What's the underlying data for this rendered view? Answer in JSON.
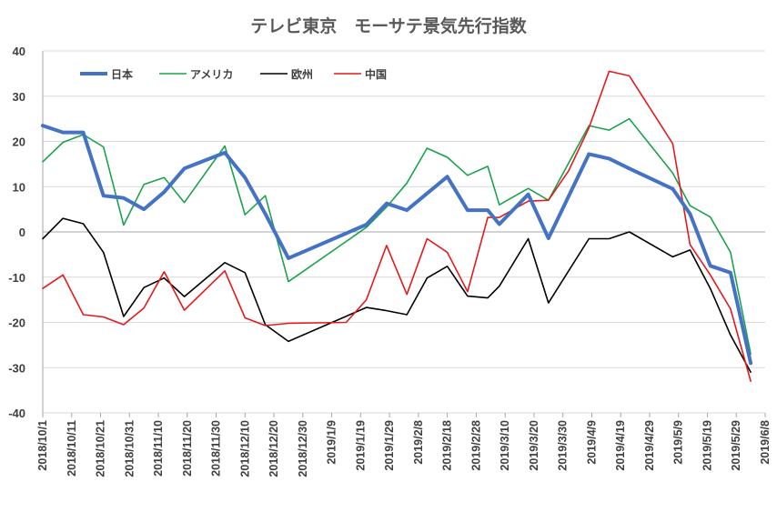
{
  "chart_data": {
    "type": "line",
    "title": "テレビ東京　モーサテ景気先行指数",
    "xlabel": "",
    "ylabel": "",
    "ylim": [
      -40,
      40
    ],
    "yticks": [
      40,
      30,
      20,
      10,
      0,
      -10,
      -20,
      -30,
      -40
    ],
    "xlim": [
      "2018-10-01",
      "2019-06-08"
    ],
    "xtick_labels": [
      "2018/10/1",
      "2018/10/11",
      "2018/10/21",
      "2018/10/31",
      "2018/11/10",
      "2018/11/20",
      "2018/11/30",
      "2018/12/10",
      "2018/12/20",
      "2018/12/30",
      "2019/1/9",
      "2019/1/19",
      "2019/1/29",
      "2019/2/8",
      "2019/2/18",
      "2019/2/28",
      "2019/3/10",
      "2019/3/20",
      "2019/3/30",
      "2019/4/9",
      "2019/4/19",
      "2019/4/29",
      "2019/5/9",
      "2019/5/19",
      "2019/5/29",
      "2019/6/8"
    ],
    "grid": true,
    "legend_position": "top-left",
    "series": [
      {
        "name": "日本",
        "color": "#4472c4",
        "width": 4,
        "x": [
          "2018-10-01",
          "2018-10-08",
          "2018-10-15",
          "2018-10-22",
          "2018-10-29",
          "2018-11-05",
          "2018-11-12",
          "2018-11-19",
          "2018-12-03",
          "2018-12-10",
          "2018-12-17",
          "2018-12-25",
          "2019-01-21",
          "2019-01-28",
          "2019-02-04",
          "2019-02-11",
          "2019-02-18",
          "2019-02-25",
          "2019-03-04",
          "2019-03-08",
          "2019-03-18",
          "2019-03-25",
          "2019-04-08",
          "2019-04-15",
          "2019-04-22",
          "2019-05-07",
          "2019-05-13",
          "2019-05-20",
          "2019-05-27",
          "2019-06-03"
        ],
        "y": [
          23.5,
          22,
          22,
          8,
          7.5,
          5,
          8.8,
          14,
          17.5,
          12,
          4,
          -5.8,
          1.6,
          6.3,
          4.8,
          8.5,
          12.2,
          4.8,
          4.8,
          1.7,
          8.3,
          -1.4,
          17.2,
          16.2,
          14,
          9.5,
          4,
          -7.5,
          -9,
          -29
        ]
      },
      {
        "name": "アメリカ",
        "color": "#1aa34a",
        "width": 1.6,
        "x": [
          "2018-10-01",
          "2018-10-08",
          "2018-10-15",
          "2018-10-22",
          "2018-10-29",
          "2018-11-05",
          "2018-11-12",
          "2018-11-19",
          "2018-12-03",
          "2018-12-10",
          "2018-12-17",
          "2018-12-25",
          "2019-01-21",
          "2019-01-28",
          "2019-02-04",
          "2019-02-11",
          "2019-02-18",
          "2019-02-25",
          "2019-03-04",
          "2019-03-08",
          "2019-03-18",
          "2019-03-25",
          "2019-04-08",
          "2019-04-15",
          "2019-04-22",
          "2019-05-07",
          "2019-05-13",
          "2019-05-20",
          "2019-05-27",
          "2019-06-03"
        ],
        "y": [
          15.5,
          19.8,
          21.5,
          18.8,
          1.5,
          10.5,
          12,
          6.5,
          19,
          3.8,
          8,
          -11,
          1,
          5.5,
          10.8,
          18.5,
          16.5,
          12.5,
          14.5,
          6,
          9.6,
          7,
          23.5,
          22.5,
          25,
          13,
          5.8,
          3.3,
          -4.5,
          -27
        ]
      },
      {
        "name": "欧州",
        "color": "#000000",
        "width": 1.6,
        "x": [
          "2018-10-01",
          "2018-10-08",
          "2018-10-15",
          "2018-10-22",
          "2018-10-29",
          "2018-11-05",
          "2018-11-12",
          "2018-11-19",
          "2018-12-03",
          "2018-12-10",
          "2018-12-17",
          "2018-12-25",
          "2019-01-21",
          "2019-01-28",
          "2019-02-04",
          "2019-02-11",
          "2019-02-18",
          "2019-02-25",
          "2019-03-04",
          "2019-03-08",
          "2019-03-18",
          "2019-03-25",
          "2019-04-08",
          "2019-04-15",
          "2019-04-22",
          "2019-05-07",
          "2019-05-13",
          "2019-05-20",
          "2019-05-27",
          "2019-06-03"
        ],
        "y": [
          -1.5,
          3,
          1.8,
          -4.5,
          -18.7,
          -12.3,
          -10.2,
          -14.3,
          -6.8,
          -9,
          -20.5,
          -24.2,
          -16.7,
          -17.4,
          -18.3,
          -10.2,
          -7.6,
          -14.2,
          -14.6,
          -12,
          -1.5,
          -15.7,
          -1.5,
          -1.5,
          0,
          -5.5,
          -4,
          -12.5,
          -22.8,
          -31
        ]
      },
      {
        "name": "中国",
        "color": "#e31a1c",
        "width": 1.6,
        "x": [
          "2018-10-01",
          "2018-10-08",
          "2018-10-15",
          "2018-10-22",
          "2018-10-29",
          "2018-11-05",
          "2018-11-12",
          "2018-11-19",
          "2018-12-03",
          "2018-12-10",
          "2018-12-17",
          "2018-12-25",
          "2019-01-14",
          "2019-01-21",
          "2019-01-28",
          "2019-02-04",
          "2019-02-11",
          "2019-02-18",
          "2019-02-25",
          "2019-03-04",
          "2019-03-08",
          "2019-03-18",
          "2019-03-25",
          "2019-04-01",
          "2019-04-08",
          "2019-04-15",
          "2019-04-22",
          "2019-05-07",
          "2019-05-13",
          "2019-05-20",
          "2019-05-27",
          "2019-06-03"
        ],
        "y": [
          -12.5,
          -9.5,
          -18.3,
          -18.8,
          -20.5,
          -16.8,
          -8.8,
          -17.3,
          -8.6,
          -19,
          -20.7,
          -20.2,
          -20,
          -15,
          -3,
          -13.8,
          -1.5,
          -4.5,
          -13.2,
          3.2,
          3.2,
          6.8,
          7,
          13.5,
          23,
          35.5,
          34.5,
          19.5,
          -2.8,
          -9.5,
          -17,
          -33
        ]
      }
    ]
  }
}
